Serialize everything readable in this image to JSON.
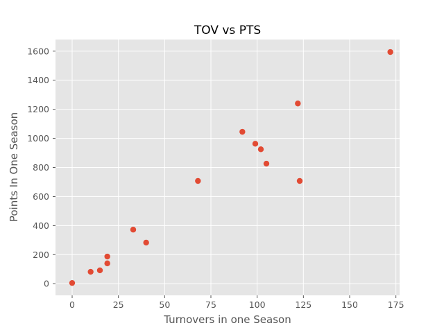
{
  "chart_data": {
    "type": "scatter",
    "title": "TOV vs PTS",
    "xlabel": "Turnovers in one Season",
    "ylabel": "Points In One Season",
    "xlim": [
      -9,
      177
    ],
    "ylim": [
      -80,
      1680
    ],
    "xticks": [
      0,
      25,
      50,
      75,
      100,
      125,
      150,
      175
    ],
    "yticks": [
      0,
      200,
      400,
      600,
      800,
      1000,
      1200,
      1400,
      1600
    ],
    "grid": true,
    "legend": "none",
    "point_color": "#e24a33",
    "background_color": "#e5e5e5",
    "points": [
      {
        "x": 0,
        "y": 5
      },
      {
        "x": 10,
        "y": 82
      },
      {
        "x": 15,
        "y": 92
      },
      {
        "x": 19,
        "y": 140
      },
      {
        "x": 19,
        "y": 187
      },
      {
        "x": 33,
        "y": 372
      },
      {
        "x": 40,
        "y": 283
      },
      {
        "x": 68,
        "y": 707
      },
      {
        "x": 92,
        "y": 1045
      },
      {
        "x": 99,
        "y": 963
      },
      {
        "x": 102,
        "y": 925
      },
      {
        "x": 105,
        "y": 826
      },
      {
        "x": 122,
        "y": 1240
      },
      {
        "x": 123,
        "y": 707
      },
      {
        "x": 172,
        "y": 1594
      }
    ]
  }
}
